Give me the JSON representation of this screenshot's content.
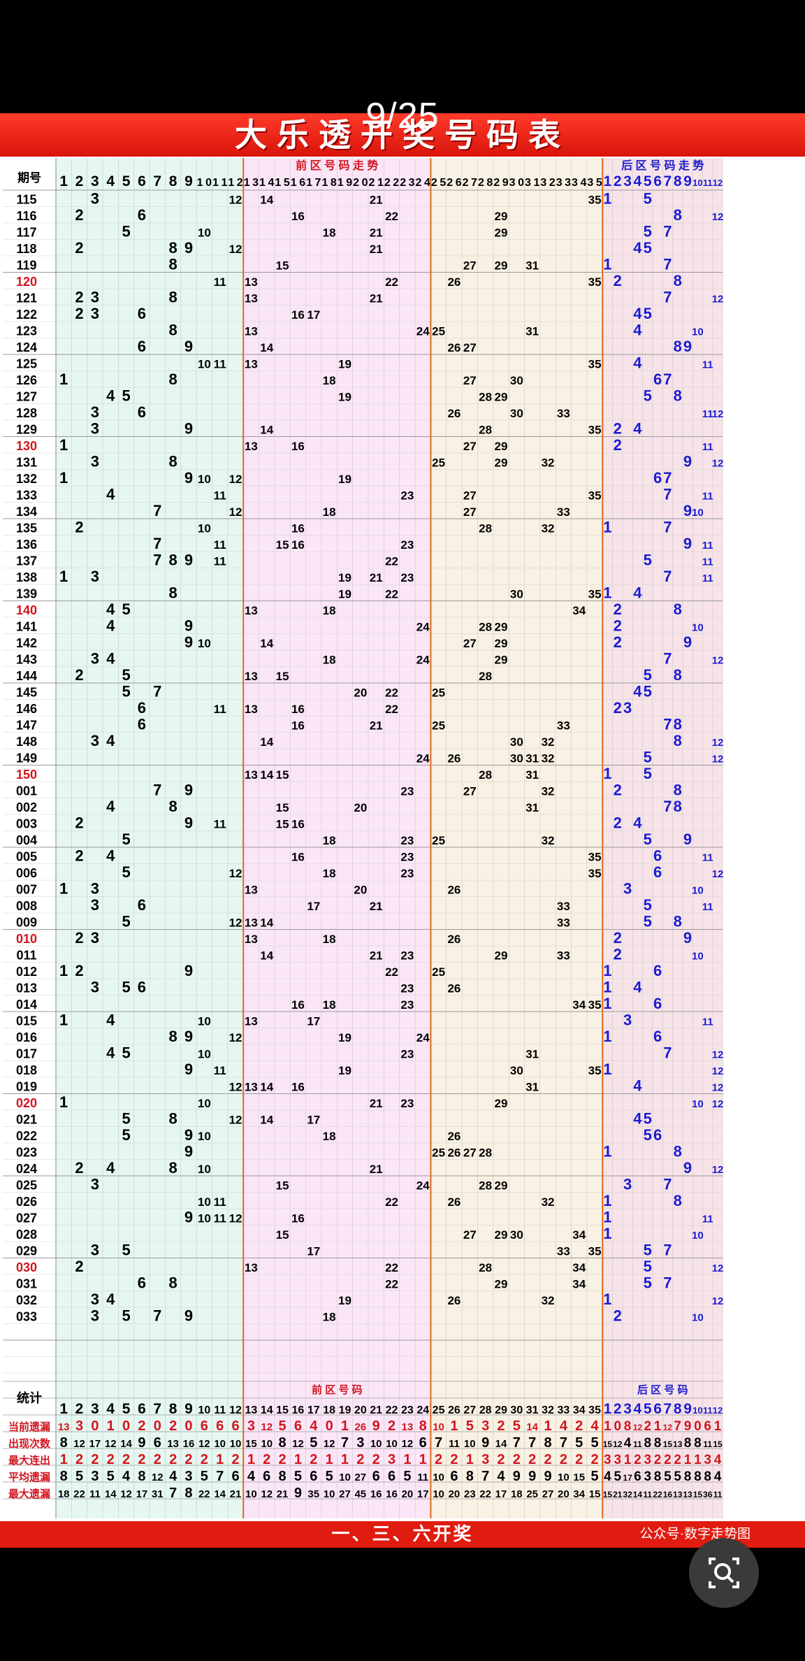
{
  "page_counter": "9/25",
  "title": "大乐透开奖号码表",
  "footer_text": "一、三、六开奖",
  "footer_brand": "公众号·数字走势图",
  "header": {
    "issue": "期号",
    "front_trend": "前 区 号 码 走 势",
    "back_trend": "后 区 号 码 走 势",
    "stats": "统计",
    "front_code": "前 区 号 码",
    "back_code": "后 区 号 码"
  },
  "colors": {
    "red": "#d2141e",
    "blue": "#1b1bd0",
    "black": "#000000",
    "front_bg1": "#e5f7f0",
    "front_bg2": "#fbe6f8",
    "front_bg3": "#f9f1e3",
    "back_bg": "#f7e3e8"
  },
  "stat_labels": [
    "当前遗漏",
    "出现次数",
    "最大连出",
    "平均遗漏",
    "最大遗漏"
  ],
  "stat_rows": [
    {
      "front": "13,3,0,1,0,2,0,2,0,6,6,6,3,12,5,6,4,0,1,26,9,2,13,8,10,1,5,3,2,5,14,1,4,2,4",
      "back": "1,0,8,12,2,1,12,7,9,0,6,1"
    },
    {
      "front": "8,12,17,12,14,9,6,13,16,12,10,10,15,10,8,12,5,12,7,3,10,10,12,6,7,11,10,9,14,7,7,8,7,5,5",
      "back": "15,12,4,11,8,8,15,13,8,8,11,15"
    },
    {
      "front": "1,2,2,2,2,2,2,2,2,2,1,2,1,2,2,1,2,1,1,2,2,3,1,1,2,2,1,3,2,2,2,2,2,2,2",
      "back": "3,3,1,2,3,2,2,2,1,1,3,4"
    },
    {
      "front": "8,5,3,5,4,8,12,4,3,5,7,6,4,6,8,5,6,5,10,27,6,6,5,11,10,6,8,7,4,9,9,9,10,15,5",
      "back": "4,5,17,6,3,8,5,5,8,8,8,4"
    },
    {
      "front": "18,22,11,14,12,17,31,7,8,22,14,21,10,12,21,9,35,10,27,45,16,16,20,17,10,20,23,22,17,18,25,27,20,34,15",
      "back": "15,21,32,14,11,22,16,13,13,15,36,11"
    }
  ],
  "draws": [
    {
      "issue": "115",
      "front": [
        3,
        12,
        14,
        21,
        35
      ],
      "back": [
        1,
        5
      ]
    },
    {
      "issue": "116",
      "front": [
        2,
        6,
        16,
        22,
        29
      ],
      "back": [
        8,
        12
      ]
    },
    {
      "issue": "117",
      "front": [
        5,
        10,
        18,
        21,
        29
      ],
      "back": [
        5,
        7
      ]
    },
    {
      "issue": "118",
      "front": [
        2,
        8,
        9,
        12,
        21
      ],
      "back": [
        4,
        5
      ]
    },
    {
      "issue": "119",
      "front": [
        15,
        27,
        29,
        31,
        8
      ],
      "back": [
        1,
        7
      ]
    },
    {
      "issue": "120",
      "front": [
        11,
        13,
        22,
        26,
        35
      ],
      "back": [
        2,
        8
      ]
    },
    {
      "issue": "121",
      "front": [
        2,
        3,
        8,
        13,
        21
      ],
      "back": [
        7,
        12
      ]
    },
    {
      "issue": "122",
      "front": [
        2,
        3,
        6,
        16,
        17
      ],
      "back": [
        4,
        5
      ]
    },
    {
      "issue": "123",
      "front": [
        8,
        13,
        24,
        25,
        31
      ],
      "back": [
        4,
        10
      ]
    },
    {
      "issue": "124",
      "front": [
        6,
        9,
        14,
        26,
        27
      ],
      "back": [
        8,
        9
      ]
    },
    {
      "issue": "125",
      "front": [
        10,
        11,
        13,
        19,
        35
      ],
      "back": [
        4,
        11
      ]
    },
    {
      "issue": "126",
      "front": [
        1,
        8,
        18,
        27,
        30
      ],
      "back": [
        6,
        7
      ]
    },
    {
      "issue": "127",
      "front": [
        4,
        5,
        19,
        28,
        29
      ],
      "back": [
        5,
        8
      ]
    },
    {
      "issue": "128",
      "front": [
        3,
        6,
        26,
        30,
        33
      ],
      "back": [
        11,
        12
      ]
    },
    {
      "issue": "129",
      "front": [
        3,
        9,
        14,
        28,
        35
      ],
      "back": [
        2,
        4
      ]
    },
    {
      "issue": "130",
      "front": [
        1,
        13,
        16,
        27,
        29
      ],
      "back": [
        2,
        11
      ]
    },
    {
      "issue": "131",
      "front": [
        3,
        8,
        25,
        29,
        32
      ],
      "back": [
        9,
        12
      ]
    },
    {
      "issue": "132",
      "front": [
        1,
        9,
        10,
        12,
        19
      ],
      "back": [
        6,
        7
      ]
    },
    {
      "issue": "133",
      "front": [
        4,
        11,
        23,
        27,
        35
      ],
      "back": [
        7,
        11
      ]
    },
    {
      "issue": "134",
      "front": [
        7,
        12,
        18,
        27,
        33
      ],
      "back": [
        9,
        10
      ]
    },
    {
      "issue": "135",
      "front": [
        2,
        10,
        16,
        28,
        32
      ],
      "back": [
        1,
        7
      ]
    },
    {
      "issue": "136",
      "front": [
        7,
        11,
        15,
        16,
        23
      ],
      "back": [
        9,
        11
      ]
    },
    {
      "issue": "137",
      "front": [
        7,
        8,
        9,
        11,
        22
      ],
      "back": [
        5,
        11
      ]
    },
    {
      "issue": "138",
      "front": [
        1,
        3,
        19,
        21,
        23
      ],
      "back": [
        7,
        11
      ]
    },
    {
      "issue": "139",
      "front": [
        8,
        19,
        22,
        30,
        35
      ],
      "back": [
        1,
        4
      ]
    },
    {
      "issue": "140",
      "front": [
        4,
        5,
        13,
        18,
        34
      ],
      "back": [
        2,
        8
      ]
    },
    {
      "issue": "141",
      "front": [
        4,
        9,
        24,
        28,
        29
      ],
      "back": [
        2,
        10
      ]
    },
    {
      "issue": "142",
      "front": [
        9,
        10,
        14,
        27,
        29
      ],
      "back": [
        2,
        9
      ]
    },
    {
      "issue": "143",
      "front": [
        3,
        4,
        18,
        24,
        29
      ],
      "back": [
        7,
        12
      ]
    },
    {
      "issue": "144",
      "front": [
        2,
        5,
        13,
        15,
        28
      ],
      "back": [
        5,
        8
      ]
    },
    {
      "issue": "145",
      "front": [
        5,
        7,
        20,
        22,
        25
      ],
      "back": [
        4,
        5
      ]
    },
    {
      "issue": "146",
      "front": [
        6,
        11,
        13,
        16,
        22
      ],
      "back": [
        2,
        3
      ]
    },
    {
      "issue": "147",
      "front": [
        6,
        16,
        21,
        25,
        33
      ],
      "back": [
        7,
        8
      ]
    },
    {
      "issue": "148",
      "front": [
        3,
        4,
        14,
        30,
        32
      ],
      "back": [
        8,
        12
      ]
    },
    {
      "issue": "149",
      "front": [
        24,
        26,
        30,
        31,
        32
      ],
      "back": [
        5,
        12
      ]
    },
    {
      "issue": "150",
      "front": [
        13,
        14,
        15,
        28,
        31
      ],
      "back": [
        1,
        5
      ]
    },
    {
      "issue": "001",
      "front": [
        7,
        9,
        23,
        27,
        32
      ],
      "back": [
        2,
        8
      ]
    },
    {
      "issue": "002",
      "front": [
        4,
        8,
        15,
        20,
        31
      ],
      "back": [
        7,
        8
      ]
    },
    {
      "issue": "003",
      "front": [
        2,
        9,
        11,
        15,
        16
      ],
      "back": [
        2,
        4
      ]
    },
    {
      "issue": "004",
      "front": [
        5,
        18,
        23,
        25,
        32
      ],
      "back": [
        5,
        9
      ]
    },
    {
      "issue": "005",
      "front": [
        2,
        4,
        16,
        23,
        35
      ],
      "back": [
        6,
        11
      ]
    },
    {
      "issue": "006",
      "front": [
        5,
        12,
        18,
        23,
        35
      ],
      "back": [
        6,
        12
      ]
    },
    {
      "issue": "007",
      "front": [
        1,
        3,
        13,
        20,
        26
      ],
      "back": [
        3,
        10
      ]
    },
    {
      "issue": "008",
      "front": [
        3,
        6,
        17,
        21,
        33
      ],
      "back": [
        5,
        11
      ]
    },
    {
      "issue": "009",
      "front": [
        5,
        12,
        13,
        14,
        33
      ],
      "back": [
        5,
        8
      ]
    },
    {
      "issue": "010",
      "front": [
        2,
        3,
        13,
        18,
        26
      ],
      "back": [
        2,
        9
      ]
    },
    {
      "issue": "011",
      "front": [
        14,
        21,
        23,
        29,
        33
      ],
      "back": [
        2,
        10
      ]
    },
    {
      "issue": "012",
      "front": [
        1,
        2,
        9,
        22,
        25
      ],
      "back": [
        1,
        6
      ]
    },
    {
      "issue": "013",
      "front": [
        3,
        5,
        6,
        23,
        26
      ],
      "back": [
        1,
        4
      ]
    },
    {
      "issue": "014",
      "front": [
        16,
        18,
        23,
        34,
        35
      ],
      "back": [
        1,
        6
      ]
    },
    {
      "issue": "015",
      "front": [
        1,
        4,
        10,
        13,
        17
      ],
      "back": [
        3,
        11
      ]
    },
    {
      "issue": "016",
      "front": [
        8,
        9,
        12,
        19,
        24
      ],
      "back": [
        1,
        6
      ]
    },
    {
      "issue": "017",
      "front": [
        4,
        5,
        10,
        23,
        31
      ],
      "back": [
        7,
        12
      ]
    },
    {
      "issue": "018",
      "front": [
        9,
        11,
        19,
        30,
        35
      ],
      "back": [
        1,
        12
      ]
    },
    {
      "issue": "019",
      "front": [
        12,
        13,
        14,
        16,
        31
      ],
      "back": [
        4,
        12
      ]
    },
    {
      "issue": "020",
      "front": [
        1,
        10,
        21,
        23,
        29
      ],
      "back": [
        10,
        12
      ]
    },
    {
      "issue": "021",
      "front": [
        5,
        8,
        12,
        14,
        17
      ],
      "back": [
        4,
        5
      ]
    },
    {
      "issue": "022",
      "front": [
        5,
        9,
        10,
        18,
        26
      ],
      "back": [
        5,
        6
      ]
    },
    {
      "issue": "023",
      "front": [
        9,
        25,
        26,
        27,
        28
      ],
      "back": [
        1,
        8
      ]
    },
    {
      "issue": "024",
      "front": [
        2,
        4,
        8,
        10,
        21
      ],
      "back": [
        9,
        12
      ]
    },
    {
      "issue": "025",
      "front": [
        3,
        15,
        24,
        28,
        29
      ],
      "back": [
        3,
        7
      ]
    },
    {
      "issue": "026",
      "front": [
        10,
        11,
        22,
        26,
        32
      ],
      "back": [
        1,
        8
      ]
    },
    {
      "issue": "027",
      "front": [
        9,
        10,
        11,
        12,
        16
      ],
      "back": [
        1,
        11
      ]
    },
    {
      "issue": "028",
      "front": [
        15,
        27,
        29,
        30,
        34
      ],
      "back": [
        1,
        10
      ]
    },
    {
      "issue": "029",
      "front": [
        3,
        5,
        17,
        33,
        35
      ],
      "back": [
        5,
        7
      ]
    },
    {
      "issue": "030",
      "front": [
        2,
        13,
        22,
        28,
        34
      ],
      "back": [
        5,
        12
      ]
    },
    {
      "issue": "031",
      "front": [
        6,
        8,
        22,
        29,
        34
      ],
      "back": [
        5,
        7
      ]
    },
    {
      "issue": "032",
      "front": [
        3,
        4,
        19,
        26,
        32
      ],
      "back": [
        1,
        12
      ]
    },
    {
      "issue": "033",
      "front": [
        3,
        5,
        7,
        9,
        18
      ],
      "back": [
        2,
        10
      ]
    }
  ],
  "red_issues": [
    "120",
    "130",
    "140",
    "150",
    "010",
    "020",
    "030"
  ]
}
